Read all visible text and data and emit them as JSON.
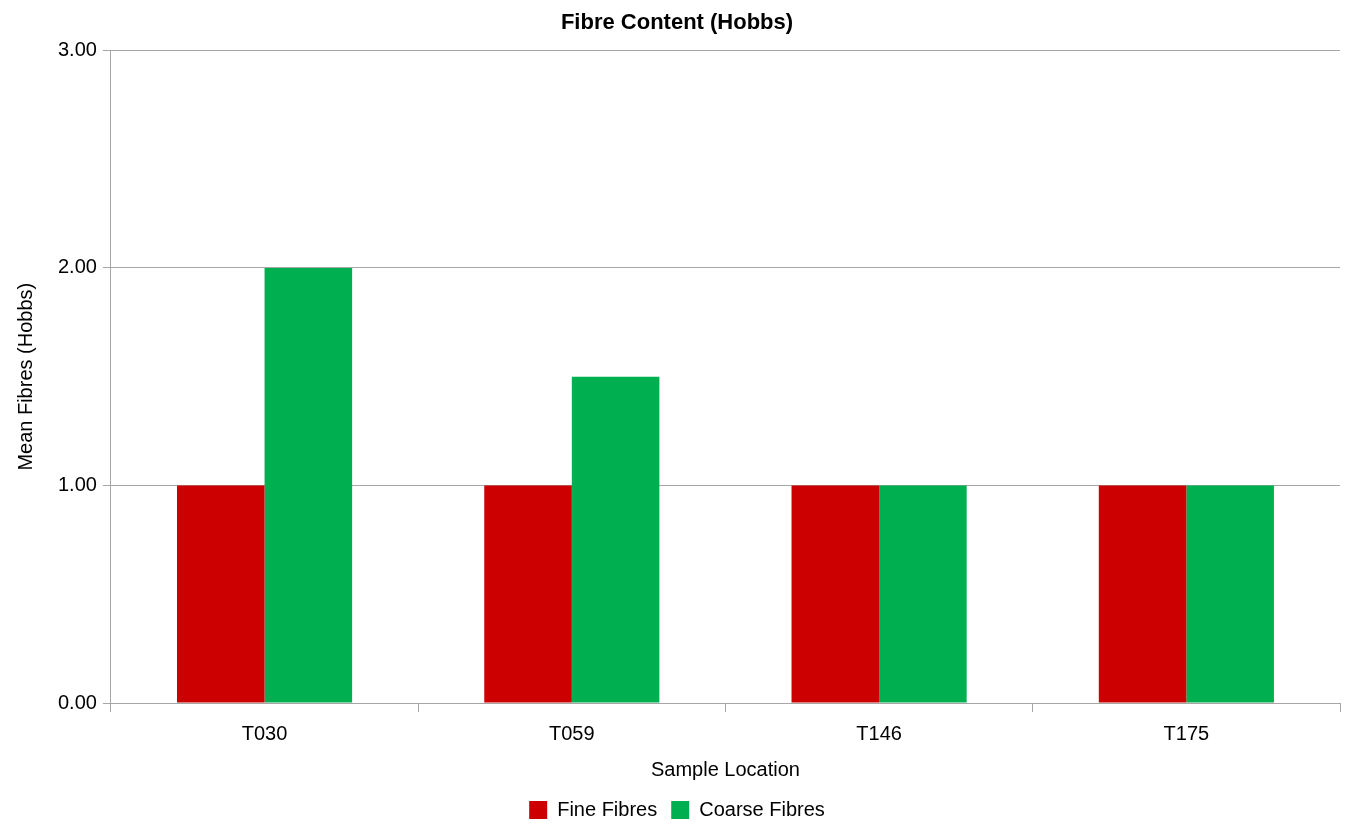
{
  "chart_data": {
    "type": "bar",
    "title": "Fibre Content (Hobbs)",
    "xlabel": "Sample Location",
    "ylabel": "Mean Fibres (Hobbs)",
    "categories": [
      "T030",
      "T059",
      "T146",
      "T175"
    ],
    "series": [
      {
        "name": "Fine Fibres",
        "color": "#cc0000",
        "values": [
          1,
          1,
          1,
          1
        ]
      },
      {
        "name": "Coarse Fibres",
        "color": "#00b050",
        "values": [
          2,
          1.5,
          1,
          1
        ]
      }
    ],
    "ylim": [
      0,
      3
    ],
    "yticks": [
      {
        "value": 0,
        "label": "0.00"
      },
      {
        "value": 1,
        "label": "1.00"
      },
      {
        "value": 2,
        "label": "2.00"
      },
      {
        "value": 3,
        "label": "3.00"
      }
    ],
    "grid": "y",
    "legend": "bottom"
  }
}
